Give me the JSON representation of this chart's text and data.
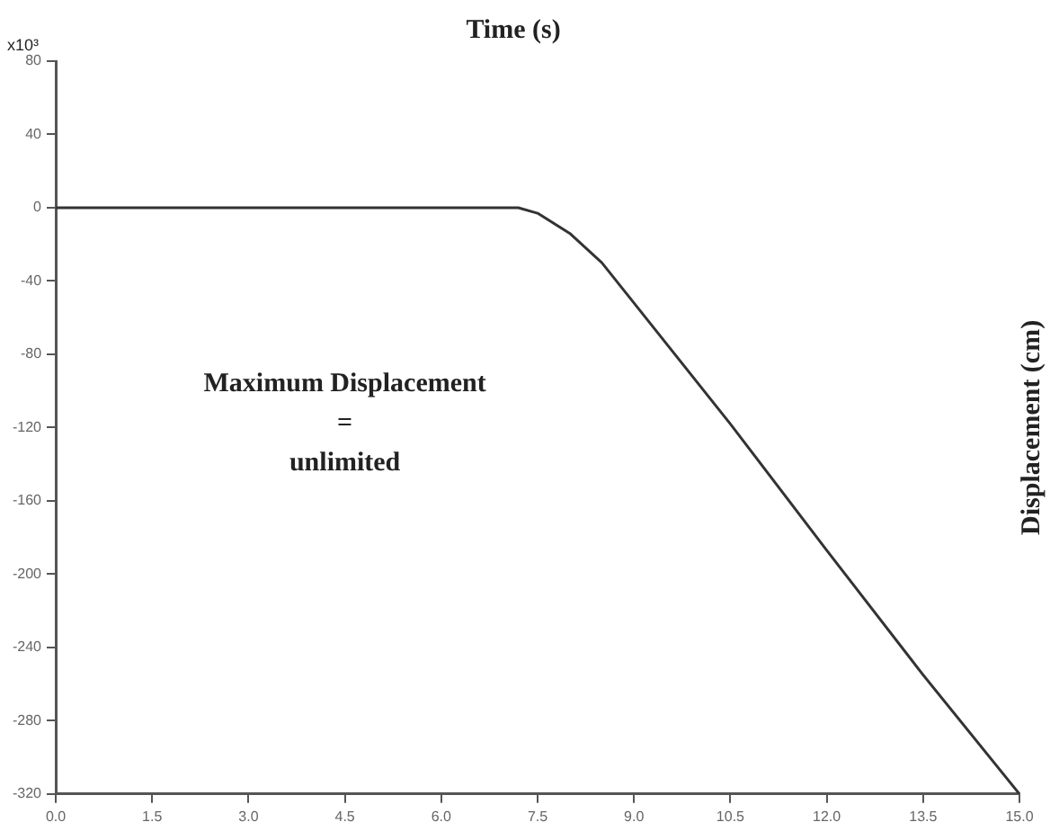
{
  "chart_data": {
    "type": "line",
    "xlabel": "Time (s)",
    "ylabel": "Displacement (cm)",
    "x": [
      0,
      1.5,
      3.0,
      4.5,
      6.0,
      7.0,
      7.2,
      7.5,
      8.0,
      8.5,
      9.0,
      10.5,
      12.0,
      13.5,
      15.0
    ],
    "series": [
      {
        "color": "#333333",
        "values": [
          0,
          0,
          0,
          0,
          0,
          0,
          0,
          -3,
          -14,
          -30,
          -52,
          -118,
          -187,
          -255,
          -320
        ]
      }
    ],
    "xlim": [
      0,
      15
    ],
    "xticks": [
      {
        "value": 0,
        "label": "0.0"
      },
      1.5,
      {
        "value": 3,
        "label": "3.0"
      },
      4.5,
      {
        "value": 6,
        "label": "6.0"
      },
      7.5,
      {
        "value": 9,
        "label": "9.0"
      },
      10.5,
      {
        "value": 12,
        "label": "12.0"
      },
      13.5,
      {
        "value": 15,
        "label": "15.0"
      }
    ],
    "ylim": [
      -320,
      80
    ],
    "yticks": [
      -320,
      -280,
      -240,
      -200,
      -160,
      -120,
      -80,
      -40,
      0,
      40,
      80
    ],
    "annotations": [
      "x10³",
      "Maximum Displacement\n=\nunlimited"
    ],
    "grid": false,
    "legend": false,
    "marker": "none",
    "line_style": "solid"
  }
}
